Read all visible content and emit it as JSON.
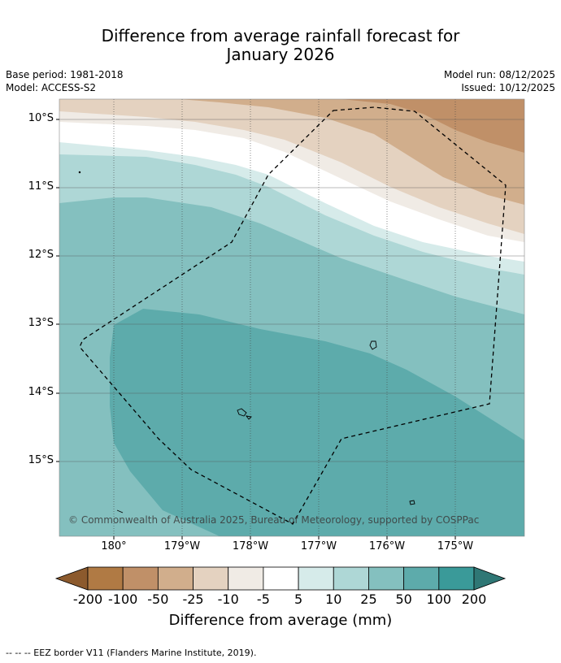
{
  "title": {
    "line1": "Difference from average rainfall forecast for",
    "line2": "January 2026"
  },
  "meta": {
    "base_period": "Base period: 1981-2018",
    "model": "Model: ACCESS-S2",
    "model_run": "Model run: 08/12/2025",
    "issued": "Issued: 10/12/2025"
  },
  "map": {
    "lat_labels": [
      "10°S",
      "11°S",
      "12°S",
      "13°S",
      "14°S",
      "15°S"
    ],
    "lon_labels": [
      "180°",
      "179°W",
      "178°W",
      "177°W",
      "176°W",
      "175°W"
    ],
    "copyright": "© Commonwealth of Australia 2025, Bureau of Meteorology, supported by COSPPac",
    "features": [
      "EEZ border (dashed)",
      "islands"
    ]
  },
  "colorbar": {
    "title": "Difference from average (mm)",
    "ticks": [
      "-200",
      "-100",
      "-50",
      "-25",
      "-10",
      "-5",
      "5",
      "10",
      "25",
      "50",
      "100",
      "200"
    ],
    "colors": [
      "#8c5a2d",
      "#b07a44",
      "#c09068",
      "#d1ae8c",
      "#e4d2c0",
      "#f0ebe5",
      "#ffffff",
      "#d6ebea",
      "#aed7d6",
      "#84c0bf",
      "#5dabab",
      "#3a9a99",
      "#2f7775"
    ]
  },
  "footnote": "--  --  -- EEZ border V11 (Flanders Marine Institute, 2019)."
}
